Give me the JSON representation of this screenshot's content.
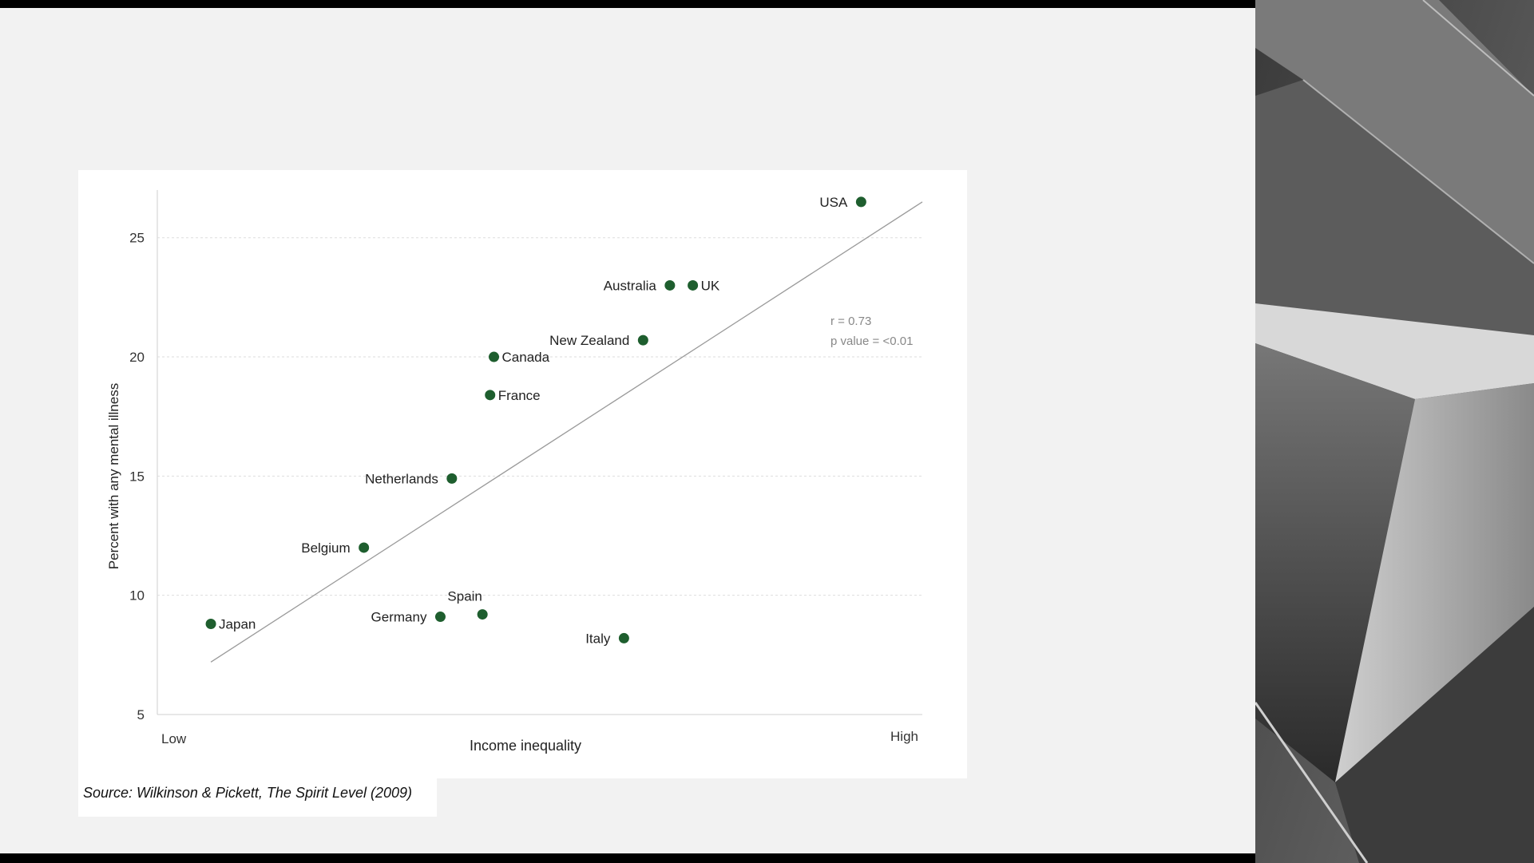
{
  "source": "Source: Wilkinson & Pickett, The Spirit Level (2009)",
  "colors": {
    "point": "#1e5e2e",
    "trend": "#9a9a9a",
    "grid": "#dddddd",
    "slide_bg": "#f2f2f2"
  },
  "chart_data": {
    "type": "scatter",
    "title": "",
    "xlabel": "Income inequality",
    "ylabel": "Percent with any mental illness",
    "x_tick_labels": [
      "Low",
      "High"
    ],
    "yticks": [
      "5",
      "10",
      "15",
      "20",
      "25"
    ],
    "ylim": [
      5,
      27
    ],
    "xlim": [
      0,
      100
    ],
    "grid": "horizontal dotted",
    "annotation": [
      "r = 0.73",
      "p value = <0.01"
    ],
    "points": [
      {
        "label": "USA",
        "x": 92,
        "y": 26.5
      },
      {
        "label": "Australia",
        "x": 67,
        "y": 23.0
      },
      {
        "label": "UK",
        "x": 70,
        "y": 23.0
      },
      {
        "label": "New Zealand",
        "x": 63.5,
        "y": 20.7
      },
      {
        "label": "Canada",
        "x": 44,
        "y": 20.0
      },
      {
        "label": "France",
        "x": 43.5,
        "y": 18.4
      },
      {
        "label": "Netherlands",
        "x": 38.5,
        "y": 14.9
      },
      {
        "label": "Belgium",
        "x": 27,
        "y": 12.0
      },
      {
        "label": "Japan",
        "x": 7,
        "y": 8.8
      },
      {
        "label": "Germany",
        "x": 37,
        "y": 9.1
      },
      {
        "label": "Spain",
        "x": 42.5,
        "y": 9.2
      },
      {
        "label": "Italy",
        "x": 61,
        "y": 8.2
      }
    ],
    "trendline": {
      "x1": 7,
      "y1": 7.2,
      "x2": 100,
      "y2": 26.5
    }
  }
}
